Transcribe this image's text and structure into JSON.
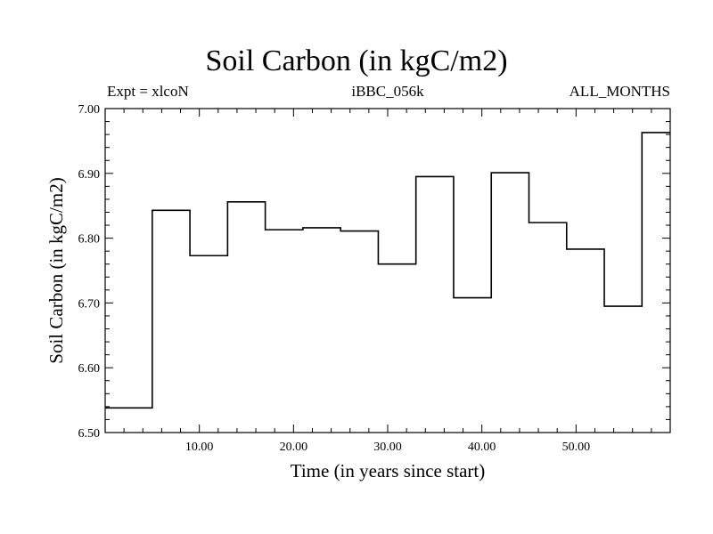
{
  "chart_data": {
    "type": "line",
    "title": "Soil Carbon (in kgC/m2)",
    "subtitle_left": "Expt = xlcoN",
    "subtitle_center": "iBBC_056k",
    "subtitle_right": "ALL_MONTHS",
    "xlabel": "Time (in years since start)",
    "ylabel": "Soil Carbon (in kgC/m2)",
    "xlim": [
      0,
      60
    ],
    "ylim": [
      6.5,
      7.0
    ],
    "x_ticks": [
      10,
      20,
      30,
      40,
      50
    ],
    "x_tick_labels": [
      "10.00",
      "20.00",
      "30.00",
      "40.00",
      "50.00"
    ],
    "y_ticks": [
      6.5,
      6.6,
      6.7,
      6.8,
      6.9,
      7.0
    ],
    "y_tick_labels": [
      "6.50",
      "6.60",
      "6.70",
      "6.80",
      "6.90",
      "7.00"
    ],
    "step": true,
    "series": [
      {
        "x": [
          0,
          5,
          9,
          13,
          17,
          21,
          25,
          29,
          33,
          37,
          41,
          45,
          49,
          53,
          57
        ],
        "values": [
          6.538,
          6.843,
          6.773,
          6.856,
          6.813,
          6.816,
          6.811,
          6.76,
          6.895,
          6.708,
          6.901,
          6.824,
          6.783,
          6.695,
          6.963
        ]
      }
    ],
    "grid": false
  }
}
